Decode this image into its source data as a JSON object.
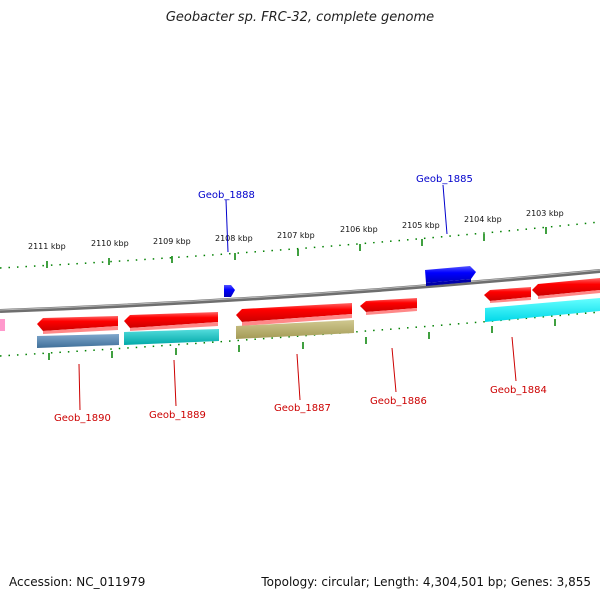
{
  "title": "Geobacter sp. FRC-32, complete genome",
  "footer": {
    "accession": "Accession: NC_011979",
    "summary": "Topology: circular; Length: 4,304,501 bp; Genes: 3,855"
  },
  "scale_labels": [
    "2111 kbp",
    "2110 kbp",
    "2109 kbp",
    "2108 kbp",
    "2107 kbp",
    "2106 kbp",
    "2105 kbp",
    "2104 kbp",
    "2103 kbp"
  ],
  "gene_labels_top": [
    "Geob_1888",
    "Geob_1885"
  ],
  "gene_labels_bottom": [
    "Geob_1890",
    "Geob_1889",
    "Geob_1887",
    "Geob_1886",
    "Geob_1884"
  ],
  "colors": {
    "backbone": "#808080",
    "ticks": "#008000",
    "forward_gene": "#0000ff",
    "reverse_gene": "#ff0000",
    "label_forward": "#0000cc",
    "label_reverse": "#cc0000"
  }
}
